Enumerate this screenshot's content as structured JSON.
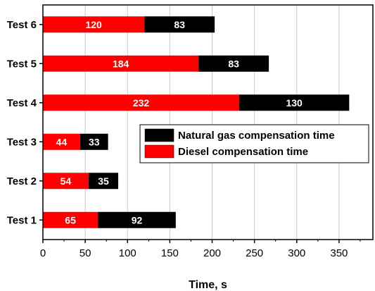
{
  "chart_data": {
    "type": "bar",
    "orientation": "horizontal",
    "stacked": true,
    "categories": [
      "Test 1",
      "Test 2",
      "Test 3",
      "Test 4",
      "Test 5",
      "Test 6"
    ],
    "series": [
      {
        "name": "Diesel compensation time",
        "values": [
          65,
          54,
          44,
          232,
          184,
          120
        ],
        "color": "#ff0000"
      },
      {
        "name": "Natural gas compensation time",
        "values": [
          92,
          35,
          33,
          130,
          83,
          83
        ],
        "color": "#000000"
      }
    ],
    "title": "",
    "xlabel": "Time, s",
    "ylabel": "",
    "xlim": [
      0,
      390
    ],
    "xticks": [
      0,
      50,
      100,
      150,
      200,
      250,
      300,
      350
    ],
    "grid": "vertical",
    "legend_position": "right-middle",
    "legend_order": [
      "Natural gas compensation time",
      "Diesel compensation time"
    ]
  }
}
